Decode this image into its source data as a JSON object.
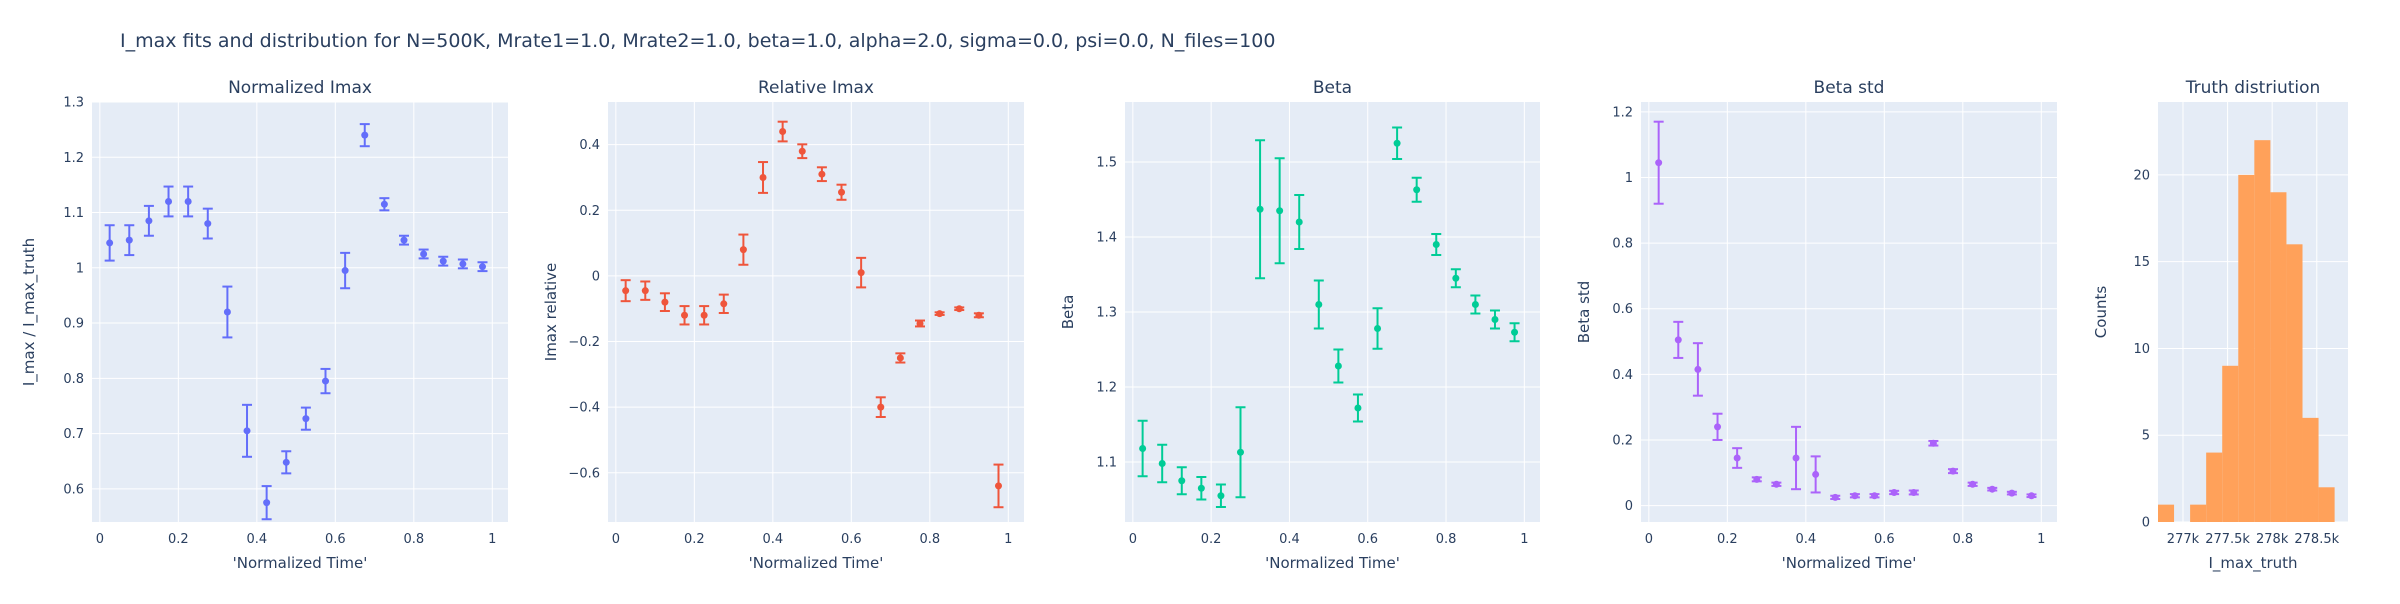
{
  "figure_title": "I_max fits and distribution for N=500K, Mrate1=1.0, Mrate2=1.0, beta=1.0, alpha=2.0, sigma=0.0,  psi=0.0, N_files=100",
  "colors": {
    "background": "#e5ecf6",
    "grid": "#ffffff",
    "text": "#2a3f5f"
  },
  "chart_data": [
    {
      "type": "scatter",
      "title": "Normalized Imax",
      "xlabel": "'Normalized Time'",
      "ylabel": "I_max / I_max_truth",
      "color": "#636efa",
      "xlim": [
        -0.02,
        1.04
      ],
      "ylim": [
        0.54,
        1.3
      ],
      "xticks": [
        0,
        0.2,
        0.4,
        0.6,
        0.8,
        1
      ],
      "xtick_labels": [
        "0",
        "0.2",
        "0.4",
        "0.6",
        "0.8",
        "1"
      ],
      "yticks": [
        0.6,
        0.7,
        0.8,
        0.9,
        1,
        1.1,
        1.2,
        1.3
      ],
      "ytick_labels": [
        "0.6",
        "0.7",
        "0.8",
        "0.9",
        "1",
        "1.1",
        "1.2",
        "1.3"
      ],
      "x": [
        0.025,
        0.075,
        0.125,
        0.175,
        0.225,
        0.275,
        0.325,
        0.375,
        0.425,
        0.475,
        0.525,
        0.575,
        0.625,
        0.675,
        0.725,
        0.775,
        0.825,
        0.875,
        0.925,
        0.975
      ],
      "y": [
        1.045,
        1.05,
        1.085,
        1.12,
        1.12,
        1.08,
        0.92,
        0.705,
        0.575,
        0.648,
        0.727,
        0.795,
        0.995,
        1.24,
        1.115,
        1.05,
        1.025,
        1.012,
        1.007,
        1.002
      ],
      "err": [
        0.032,
        0.027,
        0.027,
        0.027,
        0.027,
        0.027,
        0.046,
        0.047,
        0.03,
        0.02,
        0.02,
        0.022,
        0.032,
        0.02,
        0.011,
        0.008,
        0.008,
        0.008,
        0.008,
        0.008
      ]
    },
    {
      "type": "scatter",
      "title": "Relative Imax",
      "xlabel": "'Normalized Time'",
      "ylabel": "Imax relative",
      "color": "#ef553b",
      "xlim": [
        -0.02,
        1.04
      ],
      "ylim": [
        -0.75,
        0.53
      ],
      "xticks": [
        0,
        0.2,
        0.4,
        0.6,
        0.8,
        1
      ],
      "xtick_labels": [
        "0",
        "0.2",
        "0.4",
        "0.6",
        "0.8",
        "1"
      ],
      "yticks": [
        -0.6,
        -0.4,
        -0.2,
        0,
        0.2,
        0.4
      ],
      "ytick_labels": [
        "−0.6",
        "−0.4",
        "−0.2",
        "0",
        "0.2",
        "0.4"
      ],
      "x": [
        0.025,
        0.075,
        0.125,
        0.175,
        0.225,
        0.275,
        0.325,
        0.375,
        0.425,
        0.475,
        0.525,
        0.575,
        0.625,
        0.675,
        0.725,
        0.775,
        0.825,
        0.875,
        0.925,
        0.975
      ],
      "y": [
        -0.045,
        -0.045,
        -0.08,
        -0.12,
        -0.12,
        -0.085,
        0.08,
        0.3,
        0.44,
        0.38,
        0.31,
        0.255,
        0.01,
        -0.4,
        -0.25,
        -0.145,
        -0.115,
        -0.1,
        -0.12,
        -0.64
      ],
      "err": [
        0.032,
        0.028,
        0.027,
        0.028,
        0.028,
        0.028,
        0.046,
        0.047,
        0.03,
        0.021,
        0.021,
        0.023,
        0.045,
        0.03,
        0.014,
        0.009,
        0.004,
        0.004,
        0.006,
        0.065
      ]
    },
    {
      "type": "scatter",
      "title": "Beta",
      "xlabel": "'Normalized Time'",
      "ylabel": "Beta",
      "color": "#00cc96",
      "xlim": [
        -0.02,
        1.04
      ],
      "ylim": [
        1.02,
        1.58
      ],
      "xticks": [
        0,
        0.2,
        0.4,
        0.6,
        0.8,
        1
      ],
      "xtick_labels": [
        "0",
        "0.2",
        "0.4",
        "0.6",
        "0.8",
        "1"
      ],
      "yticks": [
        1.1,
        1.2,
        1.3,
        1.4,
        1.5
      ],
      "ytick_labels": [
        "1.1",
        "1.2",
        "1.3",
        "1.4",
        "1.5"
      ],
      "x": [
        0.025,
        0.075,
        0.125,
        0.175,
        0.225,
        0.275,
        0.325,
        0.375,
        0.425,
        0.475,
        0.525,
        0.575,
        0.625,
        0.675,
        0.725,
        0.775,
        0.825,
        0.875,
        0.925,
        0.975
      ],
      "y": [
        1.118,
        1.098,
        1.075,
        1.065,
        1.055,
        1.113,
        1.437,
        1.435,
        1.42,
        1.31,
        1.228,
        1.172,
        1.278,
        1.525,
        1.463,
        1.39,
        1.345,
        1.31,
        1.29,
        1.273
      ],
      "err": [
        0.037,
        0.025,
        0.018,
        0.015,
        0.015,
        0.06,
        0.092,
        0.07,
        0.036,
        0.032,
        0.022,
        0.018,
        0.027,
        0.021,
        0.016,
        0.014,
        0.012,
        0.012,
        0.012,
        0.012
      ]
    },
    {
      "type": "scatter",
      "title": "Beta std",
      "xlabel": "'Normalized Time'",
      "ylabel": "Beta std",
      "color": "#ab63fa",
      "xlim": [
        -0.02,
        1.04
      ],
      "ylim": [
        -0.05,
        1.23
      ],
      "xticks": [
        0,
        0.2,
        0.4,
        0.6,
        0.8,
        1
      ],
      "xtick_labels": [
        "0",
        "0.2",
        "0.4",
        "0.6",
        "0.8",
        "1"
      ],
      "yticks": [
        0,
        0.2,
        0.4,
        0.6,
        0.8,
        1,
        1.2
      ],
      "ytick_labels": [
        "0",
        "0.2",
        "0.4",
        "0.6",
        "0.8",
        "1",
        "1.2"
      ],
      "x": [
        0.025,
        0.075,
        0.125,
        0.175,
        0.225,
        0.275,
        0.325,
        0.375,
        0.425,
        0.475,
        0.525,
        0.575,
        0.625,
        0.675,
        0.725,
        0.775,
        0.825,
        0.875,
        0.925,
        0.975
      ],
      "y": [
        1.045,
        0.505,
        0.415,
        0.24,
        0.145,
        0.08,
        0.065,
        0.145,
        0.095,
        0.025,
        0.03,
        0.03,
        0.04,
        0.04,
        0.19,
        0.105,
        0.065,
        0.05,
        0.038,
        0.03
      ],
      "err": [
        0.125,
        0.055,
        0.08,
        0.04,
        0.03,
        0.006,
        0.005,
        0.095,
        0.055,
        0.005,
        0.005,
        0.005,
        0.005,
        0.006,
        0.007,
        0.006,
        0.005,
        0.004,
        0.004,
        0.004
      ]
    },
    {
      "type": "bar",
      "title": "Truth distriution",
      "xlabel": "I_max_truth",
      "ylabel": "Counts",
      "color": "#ffa15a",
      "xlim": [
        276.72,
        278.85
      ],
      "ylim": [
        0,
        24.2
      ],
      "xticks": [
        277,
        277.5,
        278,
        278.5
      ],
      "xtick_labels": [
        "277k",
        "277.5k",
        "278k",
        "278.5k"
      ],
      "yticks": [
        0,
        5,
        10,
        15,
        20
      ],
      "ytick_labels": [
        "0",
        "5",
        "10",
        "15",
        "20"
      ],
      "bin_edges": [
        276.72,
        276.9,
        277.08,
        277.26,
        277.44,
        277.62,
        277.8,
        277.98,
        278.16,
        278.34,
        278.52,
        278.7,
        278.85
      ],
      "values": [
        1,
        0,
        1,
        4,
        9,
        20,
        22,
        19,
        16,
        6,
        2,
        0
      ]
    }
  ]
}
